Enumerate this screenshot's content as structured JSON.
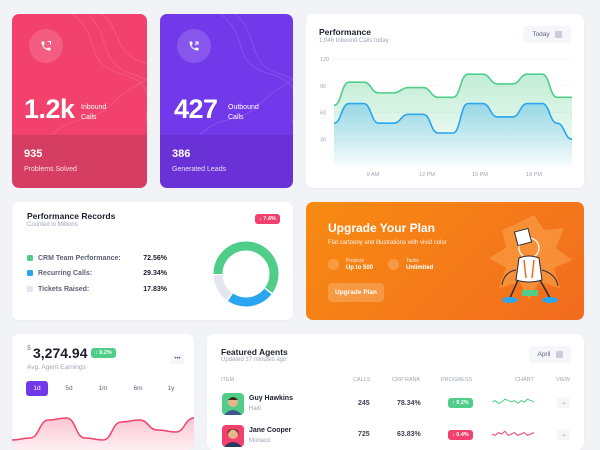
{
  "colors": {
    "pink": "#f1416c",
    "pink_dark": "#d63d62",
    "purple": "#7239ea",
    "purple_dark": "#6a32d6",
    "green": "#50cd89",
    "blue": "#2aa5ef",
    "orange": "#f77a1b"
  },
  "inbound": {
    "value": "1.2k",
    "label_1": "Inbound",
    "label_2": "Calls",
    "sub_value": "935",
    "sub_label": "Problems Solved",
    "icon": "phone-icon"
  },
  "outbound": {
    "value": "427",
    "label_1": "Outbound",
    "label_2": "Calls",
    "sub_value": "386",
    "sub_label": "Generated Leads",
    "icon": "phone-outgoing-icon"
  },
  "performance": {
    "title": "Performance",
    "subtitle": "1,046 Inbound Calls today",
    "filter": "Today",
    "chart_data": {
      "type": "area",
      "y_ticks": [
        "120",
        "90",
        "60",
        "30"
      ],
      "x_ticks": [
        "9 AM",
        "12 PM",
        "15 PM",
        "18 PM"
      ],
      "ylim": [
        0,
        120
      ],
      "series": [
        {
          "color": "#50cd89",
          "values": [
            68,
            94,
            94,
            82,
            82,
            88,
            88,
            77,
            77,
            103,
            103,
            92,
            92,
            103,
            103,
            77,
            77
          ]
        },
        {
          "color": "#2aa5ef",
          "values": [
            48,
            70,
            70,
            48,
            48,
            58,
            58,
            37,
            37,
            70,
            70,
            55,
            55,
            70,
            70,
            48,
            30
          ]
        }
      ]
    }
  },
  "records": {
    "title": "Performance Records",
    "subtitle": "Counted in Millions",
    "badge": "↓ 7.4%",
    "items": [
      {
        "label": "CRM Team Performance:",
        "value": "72.56%",
        "color": "#50cd89"
      },
      {
        "label": "Recurring Calls:",
        "value": "29.34%",
        "color": "#2aa5ef"
      },
      {
        "label": "Tickets Raised:",
        "value": "17.83%",
        "color": "#e4e6ef"
      }
    ],
    "chart_data": {
      "type": "pie",
      "slices": [
        {
          "name": "CRM Team Performance",
          "value": 72.56,
          "color": "#50cd89"
        },
        {
          "name": "Recurring Calls",
          "value": 29.34,
          "color": "#2aa5ef"
        },
        {
          "name": "Tickets Raised",
          "value": 17.83,
          "color": "#e4e6ef"
        }
      ]
    }
  },
  "upgrade": {
    "title": "Upgrade Your Plan",
    "subtitle": "Flat cartoony and illustrations with vivid color",
    "projects_label": "Projects",
    "projects_value": "Up to 500",
    "tasks_label": "Tasks",
    "tasks_value": "Unlimited",
    "button": "Upgrade Plan"
  },
  "earnings": {
    "currency": "$",
    "value": "3,274.94",
    "badge": "↑ 9.2%",
    "label": "Avg. Agent Earnings",
    "tabs": [
      "1d",
      "5d",
      "1m",
      "6m",
      "1y"
    ],
    "active_tab": "1d",
    "chart_data": {
      "type": "area",
      "series": [
        {
          "color": "#f1416c",
          "values": [
            20,
            22,
            40,
            42,
            22,
            20,
            38,
            40,
            30,
            28,
            42
          ]
        }
      ]
    }
  },
  "agents": {
    "title": "Featured Agents",
    "subtitle": "Updated 37 minutes ago",
    "filter": "April",
    "columns": {
      "item": "ITEM",
      "calls": "CALLS",
      "rank": "CRP RANK",
      "progress": "PROGRESS",
      "chart": "CHART",
      "view": "VIEW"
    },
    "rows": [
      {
        "name": "Guy Hawkins",
        "location": "Haiti",
        "calls": "245",
        "rank": "78.34%",
        "progress": "↑ 9.2%",
        "trend": "up",
        "spark": [
          5,
          6,
          4,
          5,
          7,
          6,
          5,
          6,
          4,
          6,
          5,
          7,
          6,
          5
        ]
      },
      {
        "name": "Jane Cooper",
        "location": "Monaco",
        "calls": "725",
        "rank": "63.83%",
        "progress": "↓ 0.4%",
        "trend": "down",
        "spark": [
          5,
          4,
          6,
          5,
          7,
          4,
          5,
          6,
          4,
          5,
          6,
          4,
          5,
          6
        ]
      }
    ]
  }
}
